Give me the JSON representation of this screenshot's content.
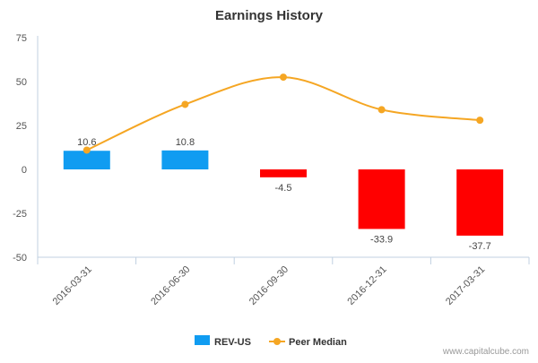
{
  "chart_data": {
    "type": "bar",
    "title": "Earnings History",
    "xlabel": "",
    "ylabel": "",
    "categories": [
      "2016-03-31",
      "2016-06-30",
      "2016-09-30",
      "2016-12-31",
      "2017-03-31"
    ],
    "ylim": [
      -50,
      75
    ],
    "yticks": [
      75,
      50,
      25,
      0,
      -25,
      -50
    ],
    "series": [
      {
        "name": "REV-US",
        "type": "bar",
        "values": [
          10.6,
          10.8,
          -4.5,
          -33.9,
          -37.7
        ],
        "labels": [
          "10.6",
          "10.8",
          "-4.5",
          "-33.9",
          "-37.7"
        ]
      },
      {
        "name": "Peer Median",
        "type": "line",
        "values": [
          11,
          37,
          52.5,
          34,
          28
        ]
      }
    ],
    "legend_position": "bottom",
    "grid": false
  },
  "colors": {
    "bar_positive": "#109cf1",
    "bar_negative": "#ff0000",
    "line": "#f5a623",
    "axis": "#c0d0e0"
  },
  "credit": "www.capitalcube.com"
}
